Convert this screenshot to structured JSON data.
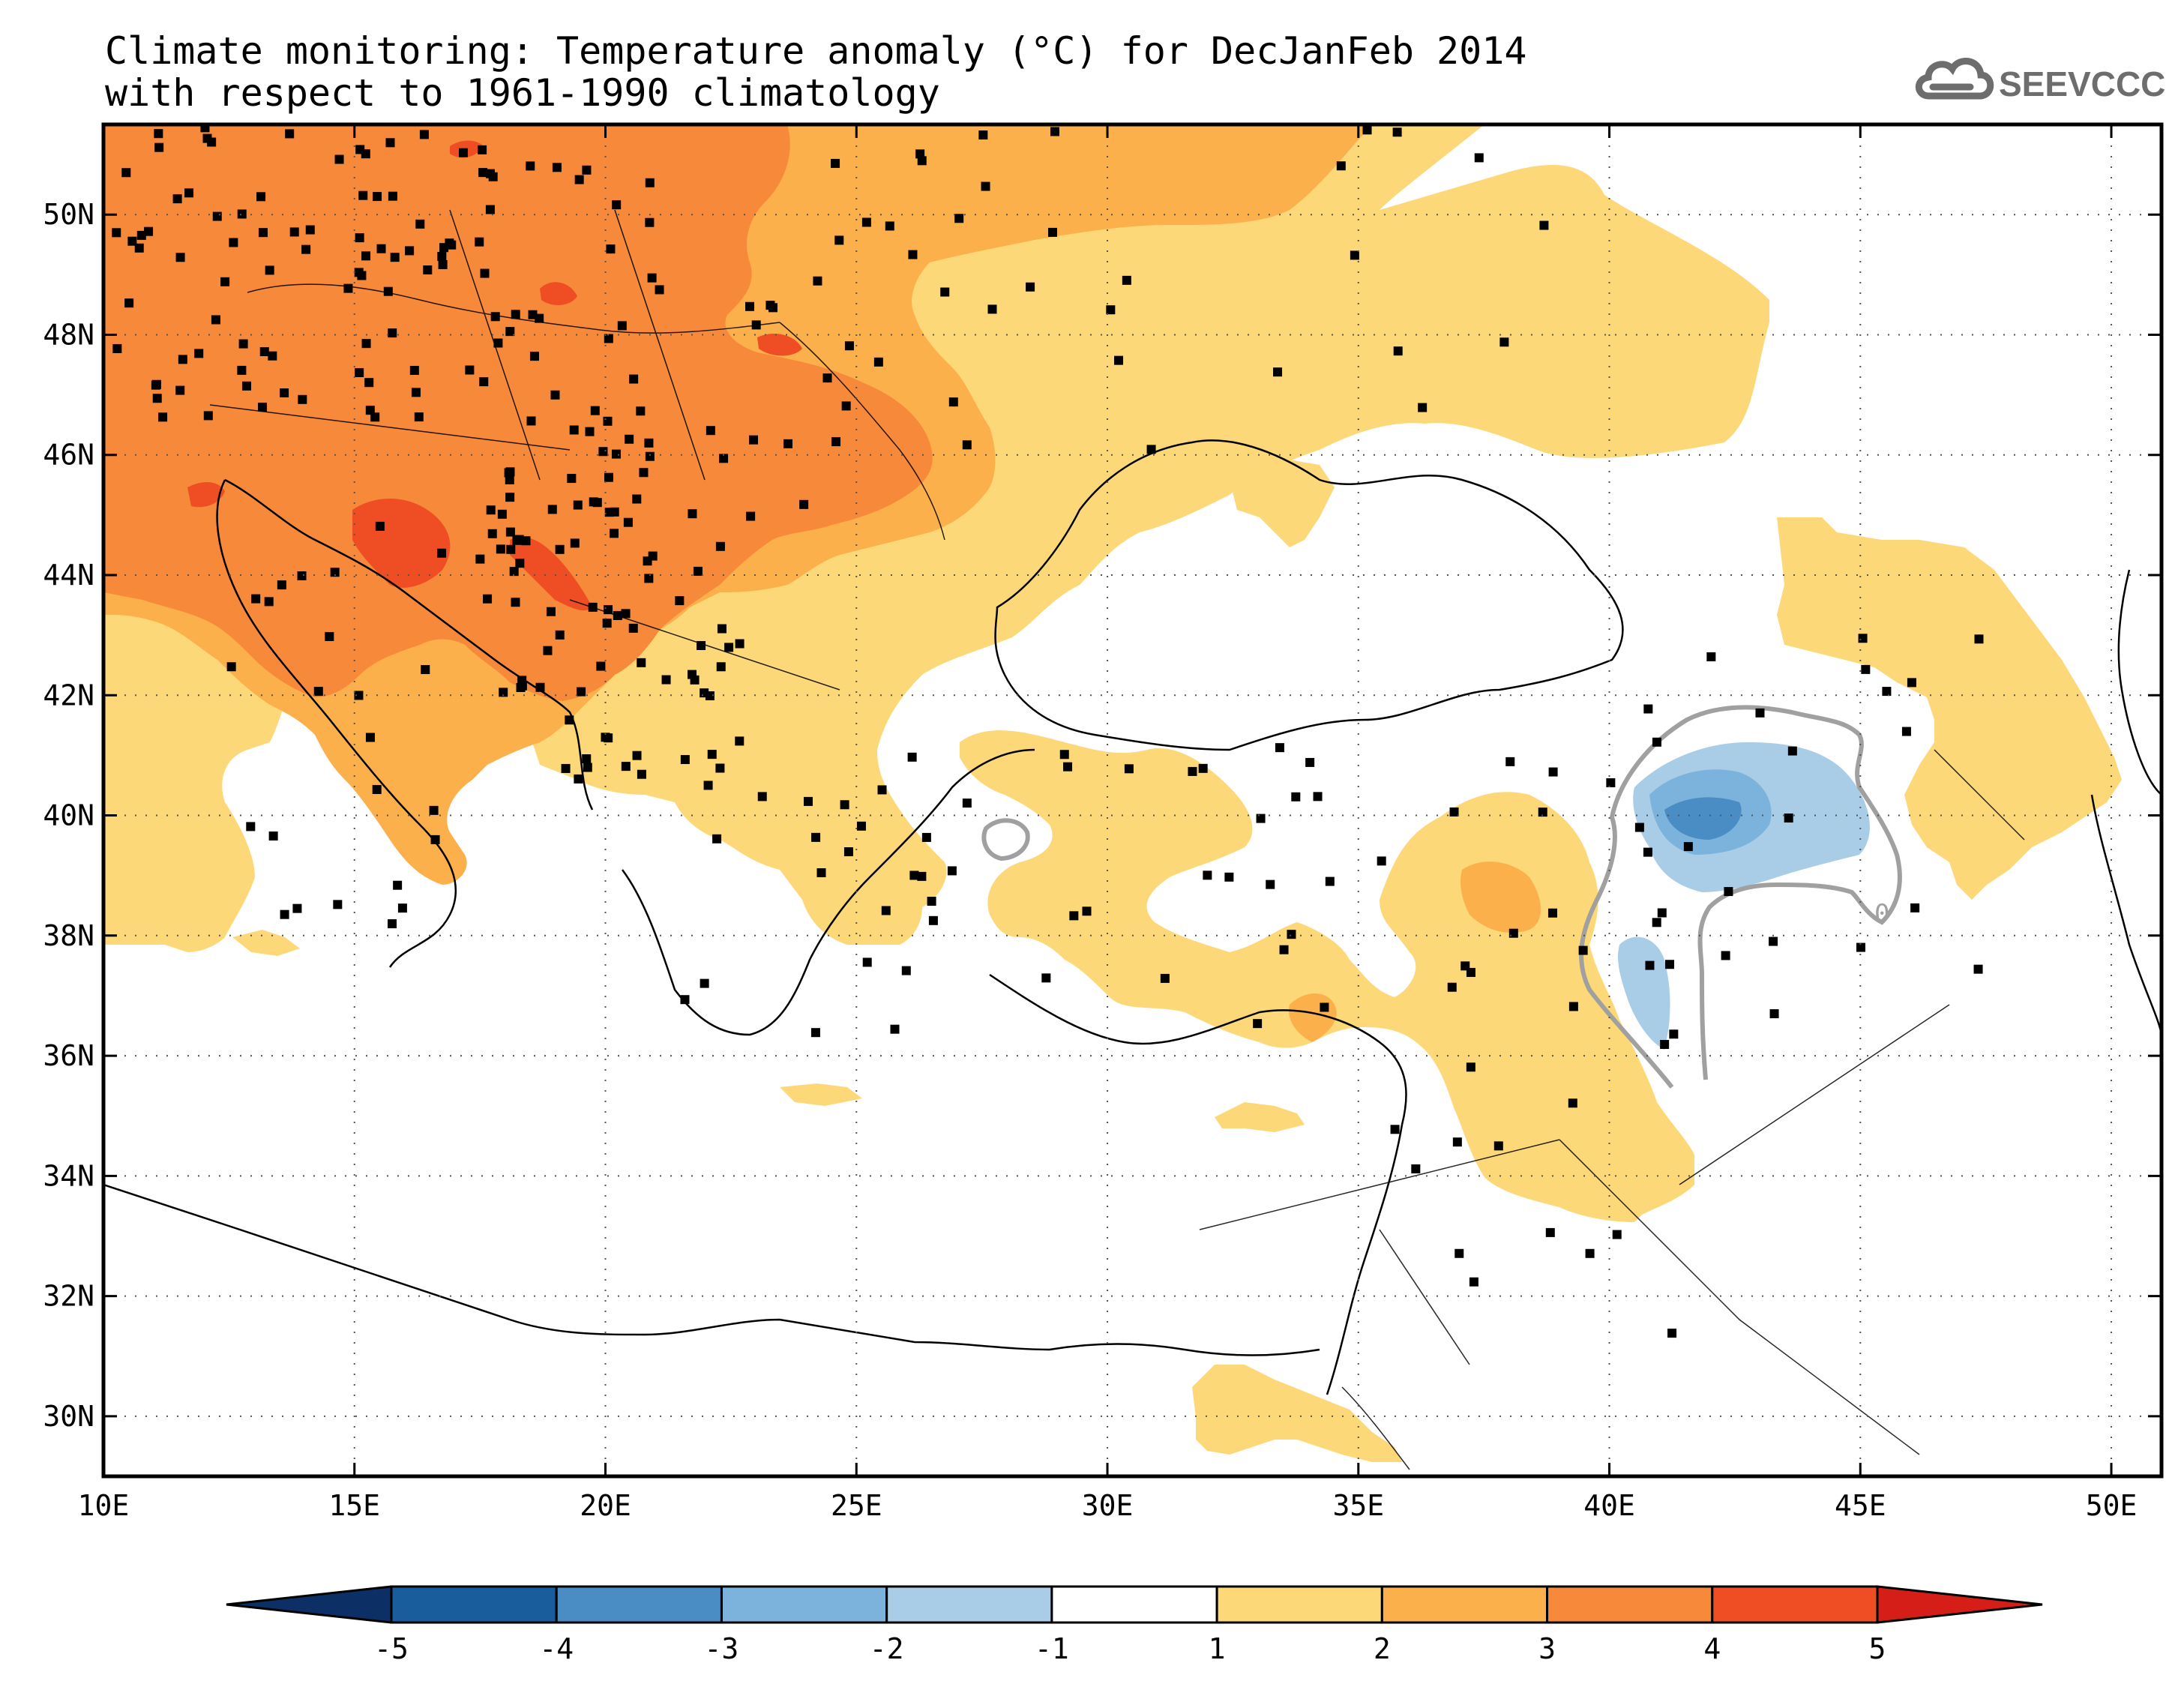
{
  "title_line1": "Climate monitoring: Temperature anomaly (°C) for DecJanFeb 2014",
  "title_line2": "with respect to 1961-1990 climatology",
  "logo_text": "SEEVCCC",
  "map": {
    "lon_range": [
      10,
      51
    ],
    "lat_range": [
      29,
      51.5
    ],
    "lat_labels": [
      "30N",
      "32N",
      "34N",
      "36N",
      "38N",
      "40N",
      "42N",
      "44N",
      "46N",
      "48N",
      "50N"
    ],
    "lon_labels": [
      "10E",
      "15E",
      "20E",
      "25E",
      "30E",
      "35E",
      "40E",
      "45E",
      "50E"
    ],
    "contour_label": "0"
  },
  "colorbar": {
    "ticks": [
      "-5",
      "-4",
      "-3",
      "-2",
      "-1",
      "1",
      "2",
      "3",
      "4",
      "5"
    ],
    "colors": [
      "#0c2f66",
      "#1a5d9c",
      "#4a8cc4",
      "#7cb3dc",
      "#a9cde6",
      "#ffffff",
      "#fdd878",
      "#fbb04b",
      "#f7893a",
      "#ef4e24",
      "#d61e18"
    ]
  },
  "colors": {
    "anom_1_2": "#fdd878",
    "anom_2_3": "#fbb04b",
    "anom_3_4": "#f7893a",
    "anom_4_5": "#ef4e24",
    "anom_m1_m2": "#a9cde6",
    "anom_m2_m3": "#7cb3dc",
    "anom_m3_m4": "#4a8cc4",
    "zero_contour": "#a0a0a0"
  }
}
